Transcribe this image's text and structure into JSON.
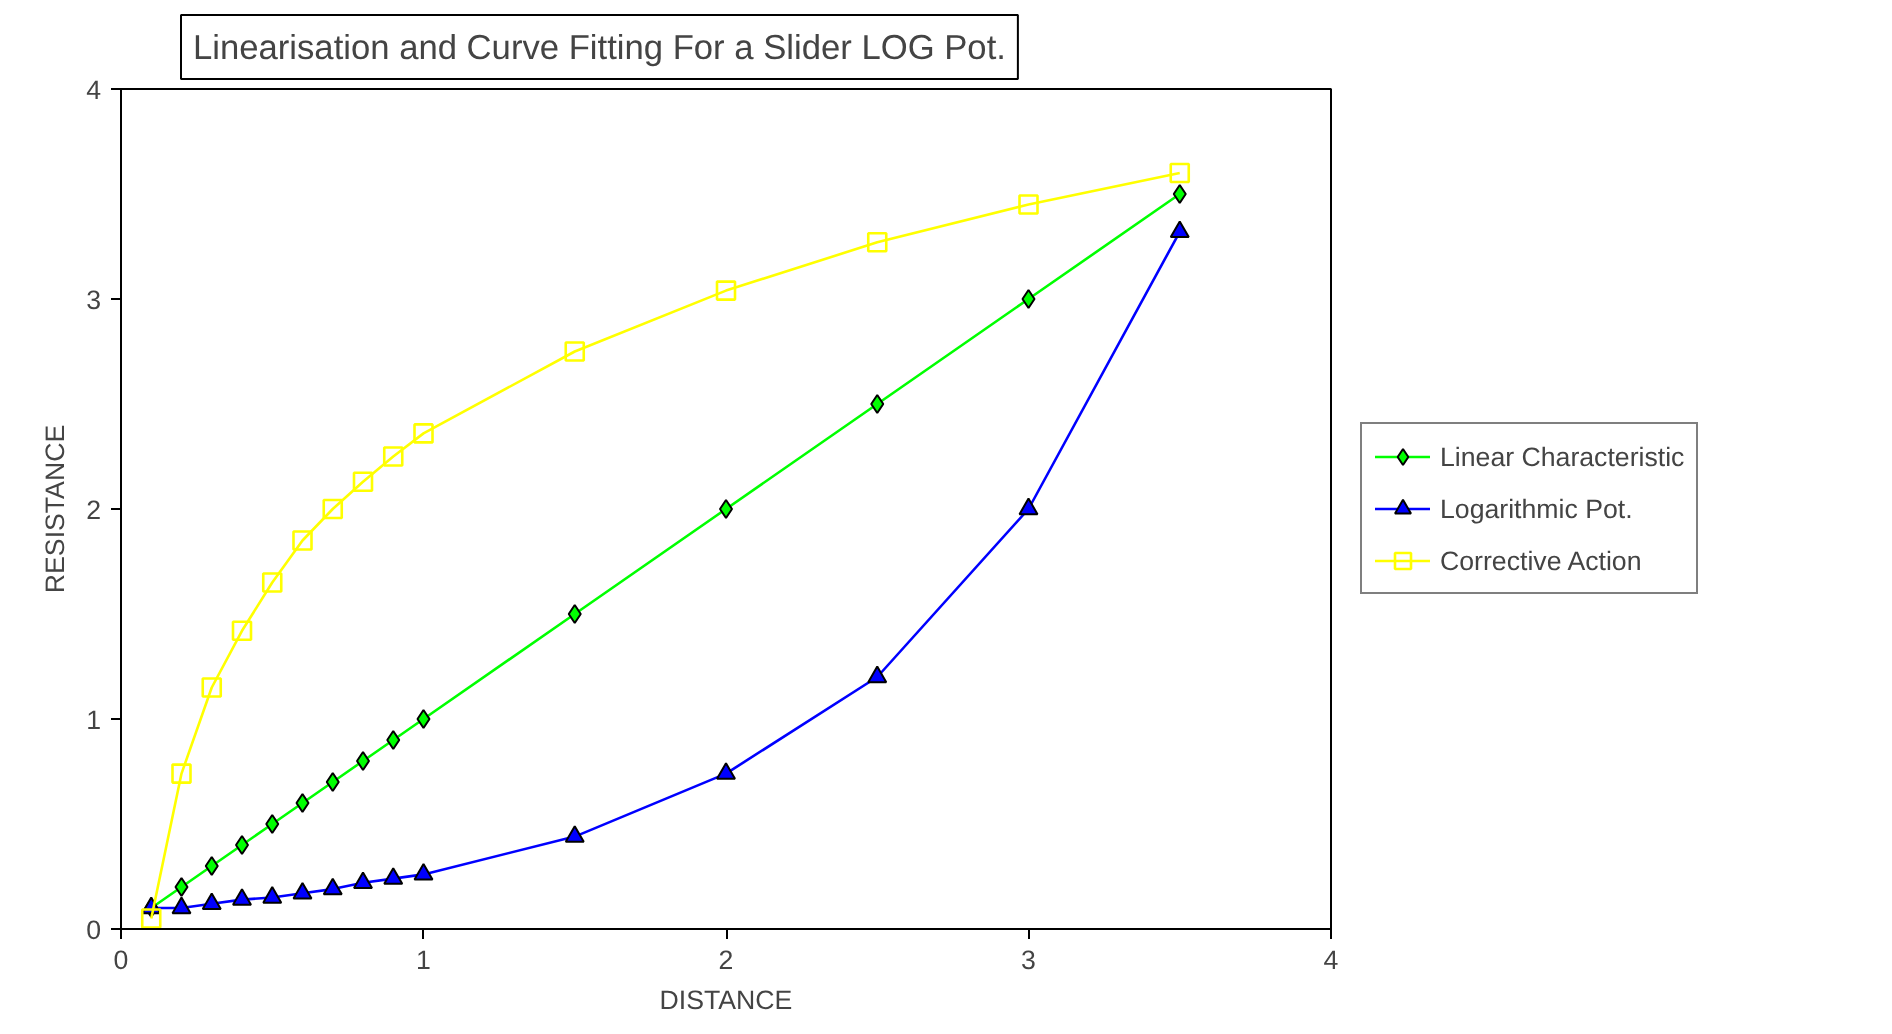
{
  "chart_data": {
    "type": "line",
    "title": "Linearisation and Curve Fitting For a Slider LOG Pot.",
    "xlabel": "DISTANCE",
    "ylabel": "RESISTANCE",
    "x": [
      0.1,
      0.2,
      0.3,
      0.4,
      0.5,
      0.6,
      0.7,
      0.8,
      0.9,
      1.0,
      1.5,
      2,
      2.5,
      3,
      3.5
    ],
    "series": [
      {
        "name": "Linear Characteristic",
        "color": "#00ff00",
        "marker": "diamond",
        "values": [
          0.1,
          0.2,
          0.3,
          0.4,
          0.5,
          0.6,
          0.7,
          0.8,
          0.9,
          1.0,
          1.5,
          2.0,
          2.5,
          3.0,
          3.5
        ]
      },
      {
        "name": "Logarithmic Pot.",
        "color": "#0000ff",
        "marker": "triangle",
        "values": [
          0.1,
          0.1,
          0.12,
          0.14,
          0.15,
          0.17,
          0.19,
          0.22,
          0.24,
          0.26,
          0.44,
          0.74,
          1.2,
          2.0,
          3.32
        ]
      },
      {
        "name": "Corrective Action",
        "color": "#ffff00",
        "marker": "square",
        "values": [
          0.05,
          0.74,
          1.15,
          1.42,
          1.65,
          1.85,
          2.0,
          2.13,
          2.25,
          2.36,
          2.75,
          3.04,
          3.27,
          3.45,
          3.6
        ]
      }
    ],
    "xlim": [
      0,
      4
    ],
    "ylim": [
      0,
      4
    ],
    "xticks": [
      0,
      1,
      2,
      3,
      4
    ],
    "yticks": [
      0,
      1,
      2,
      3,
      4
    ],
    "grid": false,
    "legend": "right",
    "line_style": "solid"
  }
}
